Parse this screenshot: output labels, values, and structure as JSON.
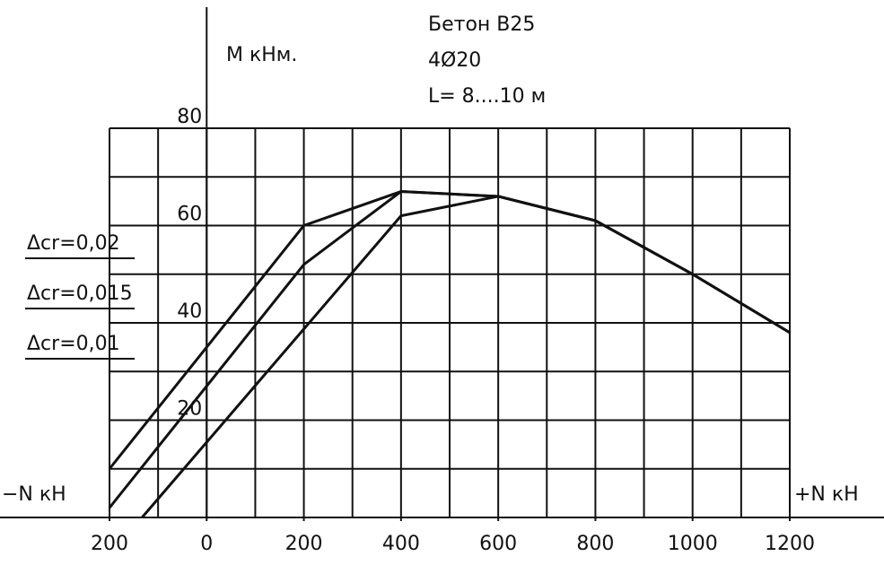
{
  "chart_data": {
    "type": "line",
    "title_lines": [
      "Бетон В25",
      "4Ø20",
      "L= 8....10 м"
    ],
    "y_label": "М кНм.",
    "x_label_left": "−N кН",
    "x_label_right": "+N кН",
    "xlim": [
      -200,
      1200
    ],
    "ylim": [
      0,
      80
    ],
    "xticks": [
      {
        "value": -200,
        "label": "200"
      },
      0,
      200,
      400,
      600,
      800,
      1000,
      1200
    ],
    "yticks": [
      20,
      40,
      60,
      80
    ],
    "xgrid": [
      -200,
      -100,
      0,
      100,
      200,
      300,
      400,
      500,
      600,
      700,
      800,
      900,
      1000,
      1100,
      1200
    ],
    "ygrid": [
      10,
      20,
      30,
      40,
      50,
      60,
      70,
      80
    ],
    "grid": true,
    "series": [
      {
        "name": "Δcr=0,02",
        "color": "#111111",
        "x": [
          -200,
          200,
          400,
          600,
          800,
          1000,
          1200
        ],
        "values": [
          10,
          60,
          67,
          66,
          61,
          50,
          38
        ]
      },
      {
        "name": "Δcr=0,015",
        "color": "#111111",
        "x": [
          -200,
          200,
          400,
          600,
          800,
          1000,
          1200
        ],
        "values": [
          2,
          52,
          67,
          66,
          61,
          50,
          38
        ]
      },
      {
        "name": "Δcr=0,01",
        "color": "#111111",
        "x": [
          -133,
          400,
          600,
          800,
          1000,
          1200
        ],
        "values": [
          0,
          62,
          66,
          61,
          50,
          38
        ]
      }
    ]
  }
}
